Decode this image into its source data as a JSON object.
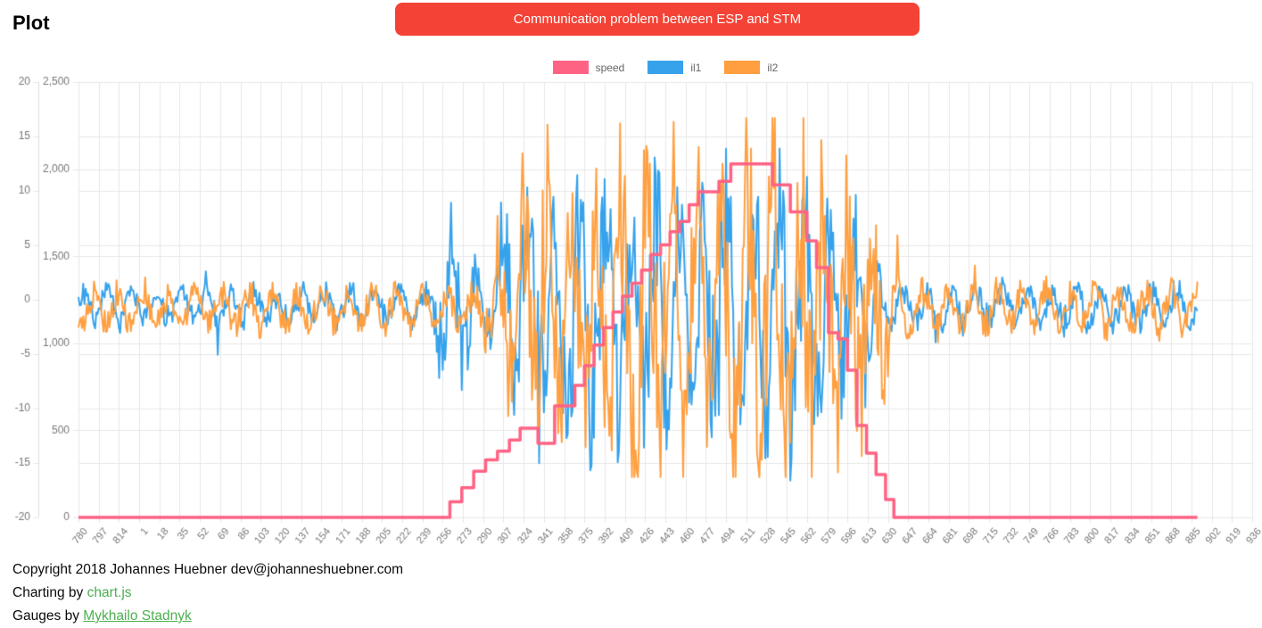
{
  "page": {
    "title": "Plot"
  },
  "toast": {
    "message": "Communication problem between ESP and STM",
    "bg": "#f44336",
    "text_color": "#ffffff"
  },
  "footer": {
    "copyright": "Copyright 2018 Johannes Huebner dev@johanneshuebner.com",
    "charting_prefix": "Charting by ",
    "charting_link": "chart.js",
    "gauges_prefix": "Gauges by ",
    "gauges_link": "Mykhailo Stadnyk",
    "link_color": "#4caf50"
  },
  "chart_data": {
    "type": "line",
    "title": "",
    "xlabel": "",
    "ylabel": "",
    "legend_position": "top",
    "grid": true,
    "grid_color": "#e7e7e7",
    "axis_line_color": "#dcdcdc",
    "tick_text_color": "#777777",
    "x_tick_labels": [
      "780",
      "797",
      "814",
      "1",
      "18",
      "35",
      "52",
      "69",
      "86",
      "103",
      "120",
      "137",
      "154",
      "171",
      "188",
      "205",
      "222",
      "239",
      "256",
      "273",
      "290",
      "307",
      "324",
      "341",
      "358",
      "375",
      "392",
      "409",
      "426",
      "443",
      "460",
      "477",
      "494",
      "511",
      "528",
      "545",
      "562",
      "579",
      "596",
      "613",
      "630",
      "647",
      "664",
      "681",
      "698",
      "715",
      "732",
      "749",
      "766",
      "783",
      "800",
      "817",
      "834",
      "851",
      "868",
      "885",
      "902",
      "919",
      "936"
    ],
    "samples_per_tick": 17,
    "samples_drawn": 940,
    "y_axis_outer": {
      "min": -20,
      "max": 20,
      "ticks": [
        20,
        15,
        10,
        5,
        0,
        -5,
        -10,
        -15,
        -20
      ]
    },
    "y_axis_inner": {
      "min": 0,
      "max": 2500,
      "ticks": [
        {
          "label": "2,500",
          "v": 2500
        },
        {
          "label": "2,000",
          "v": 2000
        },
        {
          "label": "1,500",
          "v": 1500
        },
        {
          "label": "1,000",
          "v": 1000
        },
        {
          "label": "500",
          "v": 500
        },
        {
          "label": "0",
          "v": 0
        }
      ]
    },
    "series": [
      {
        "name": "speed",
        "color": "#ff6384",
        "axis": "inner",
        "style": "step",
        "line_width": 3.5,
        "points": [
          [
            0,
            0
          ],
          [
            312,
            90
          ],
          [
            322,
            170
          ],
          [
            332,
            265
          ],
          [
            342,
            330
          ],
          [
            352,
            380
          ],
          [
            362,
            445
          ],
          [
            371,
            512
          ],
          [
            386,
            425
          ],
          [
            400,
            640
          ],
          [
            417,
            758
          ],
          [
            425,
            871
          ],
          [
            433,
            990
          ],
          [
            441,
            1090
          ],
          [
            449,
            1180
          ],
          [
            457,
            1270
          ],
          [
            465,
            1345
          ],
          [
            473,
            1420
          ],
          [
            481,
            1510
          ],
          [
            489,
            1565
          ],
          [
            497,
            1640
          ],
          [
            505,
            1700
          ],
          [
            513,
            1795
          ],
          [
            521,
            1870
          ],
          [
            538,
            1930
          ],
          [
            548,
            2030
          ],
          [
            575,
            2030
          ],
          [
            583,
            1910
          ],
          [
            598,
            1755
          ],
          [
            612,
            1588
          ],
          [
            620,
            1434
          ],
          [
            630,
            1060
          ],
          [
            638,
            1024
          ],
          [
            646,
            845
          ],
          [
            654,
            528
          ],
          [
            662,
            369
          ],
          [
            670,
            246
          ],
          [
            678,
            102
          ],
          [
            685,
            0
          ]
        ]
      },
      {
        "name": "il1",
        "color": "#36a2eb",
        "axis": "outer",
        "style": "noise",
        "line_width": 2,
        "bias": -0.6,
        "seed": 7,
        "spike_prob": 0.01,
        "clamp": [
          -18,
          14.5
        ],
        "envelope": [
          [
            0,
            1.9
          ],
          [
            296,
            1.9
          ],
          [
            304,
            7.8
          ],
          [
            328,
            7.8
          ],
          [
            336,
            3.2
          ],
          [
            348,
            3.2
          ],
          [
            356,
            11
          ],
          [
            420,
            13
          ],
          [
            470,
            12
          ],
          [
            520,
            13
          ],
          [
            560,
            12
          ],
          [
            600,
            14.5
          ],
          [
            645,
            11
          ],
          [
            666,
            7
          ],
          [
            678,
            2.1
          ],
          [
            940,
            2.1
          ]
        ]
      },
      {
        "name": "il2",
        "color": "#ff9f40",
        "axis": "outer",
        "style": "noise",
        "line_width": 2,
        "bias": -0.8,
        "seed": 13,
        "spike_prob": 0.016,
        "clamp": [
          -15.5,
          17.5
        ],
        "envelope": [
          [
            0,
            2.2
          ],
          [
            336,
            2.2
          ],
          [
            344,
            4
          ],
          [
            356,
            9
          ],
          [
            390,
            13
          ],
          [
            430,
            11
          ],
          [
            468,
            15
          ],
          [
            515,
            13
          ],
          [
            556,
            15
          ],
          [
            604,
            17
          ],
          [
            648,
            12
          ],
          [
            684,
            8
          ],
          [
            697,
            2.4
          ],
          [
            940,
            2.4
          ]
        ]
      }
    ]
  }
}
